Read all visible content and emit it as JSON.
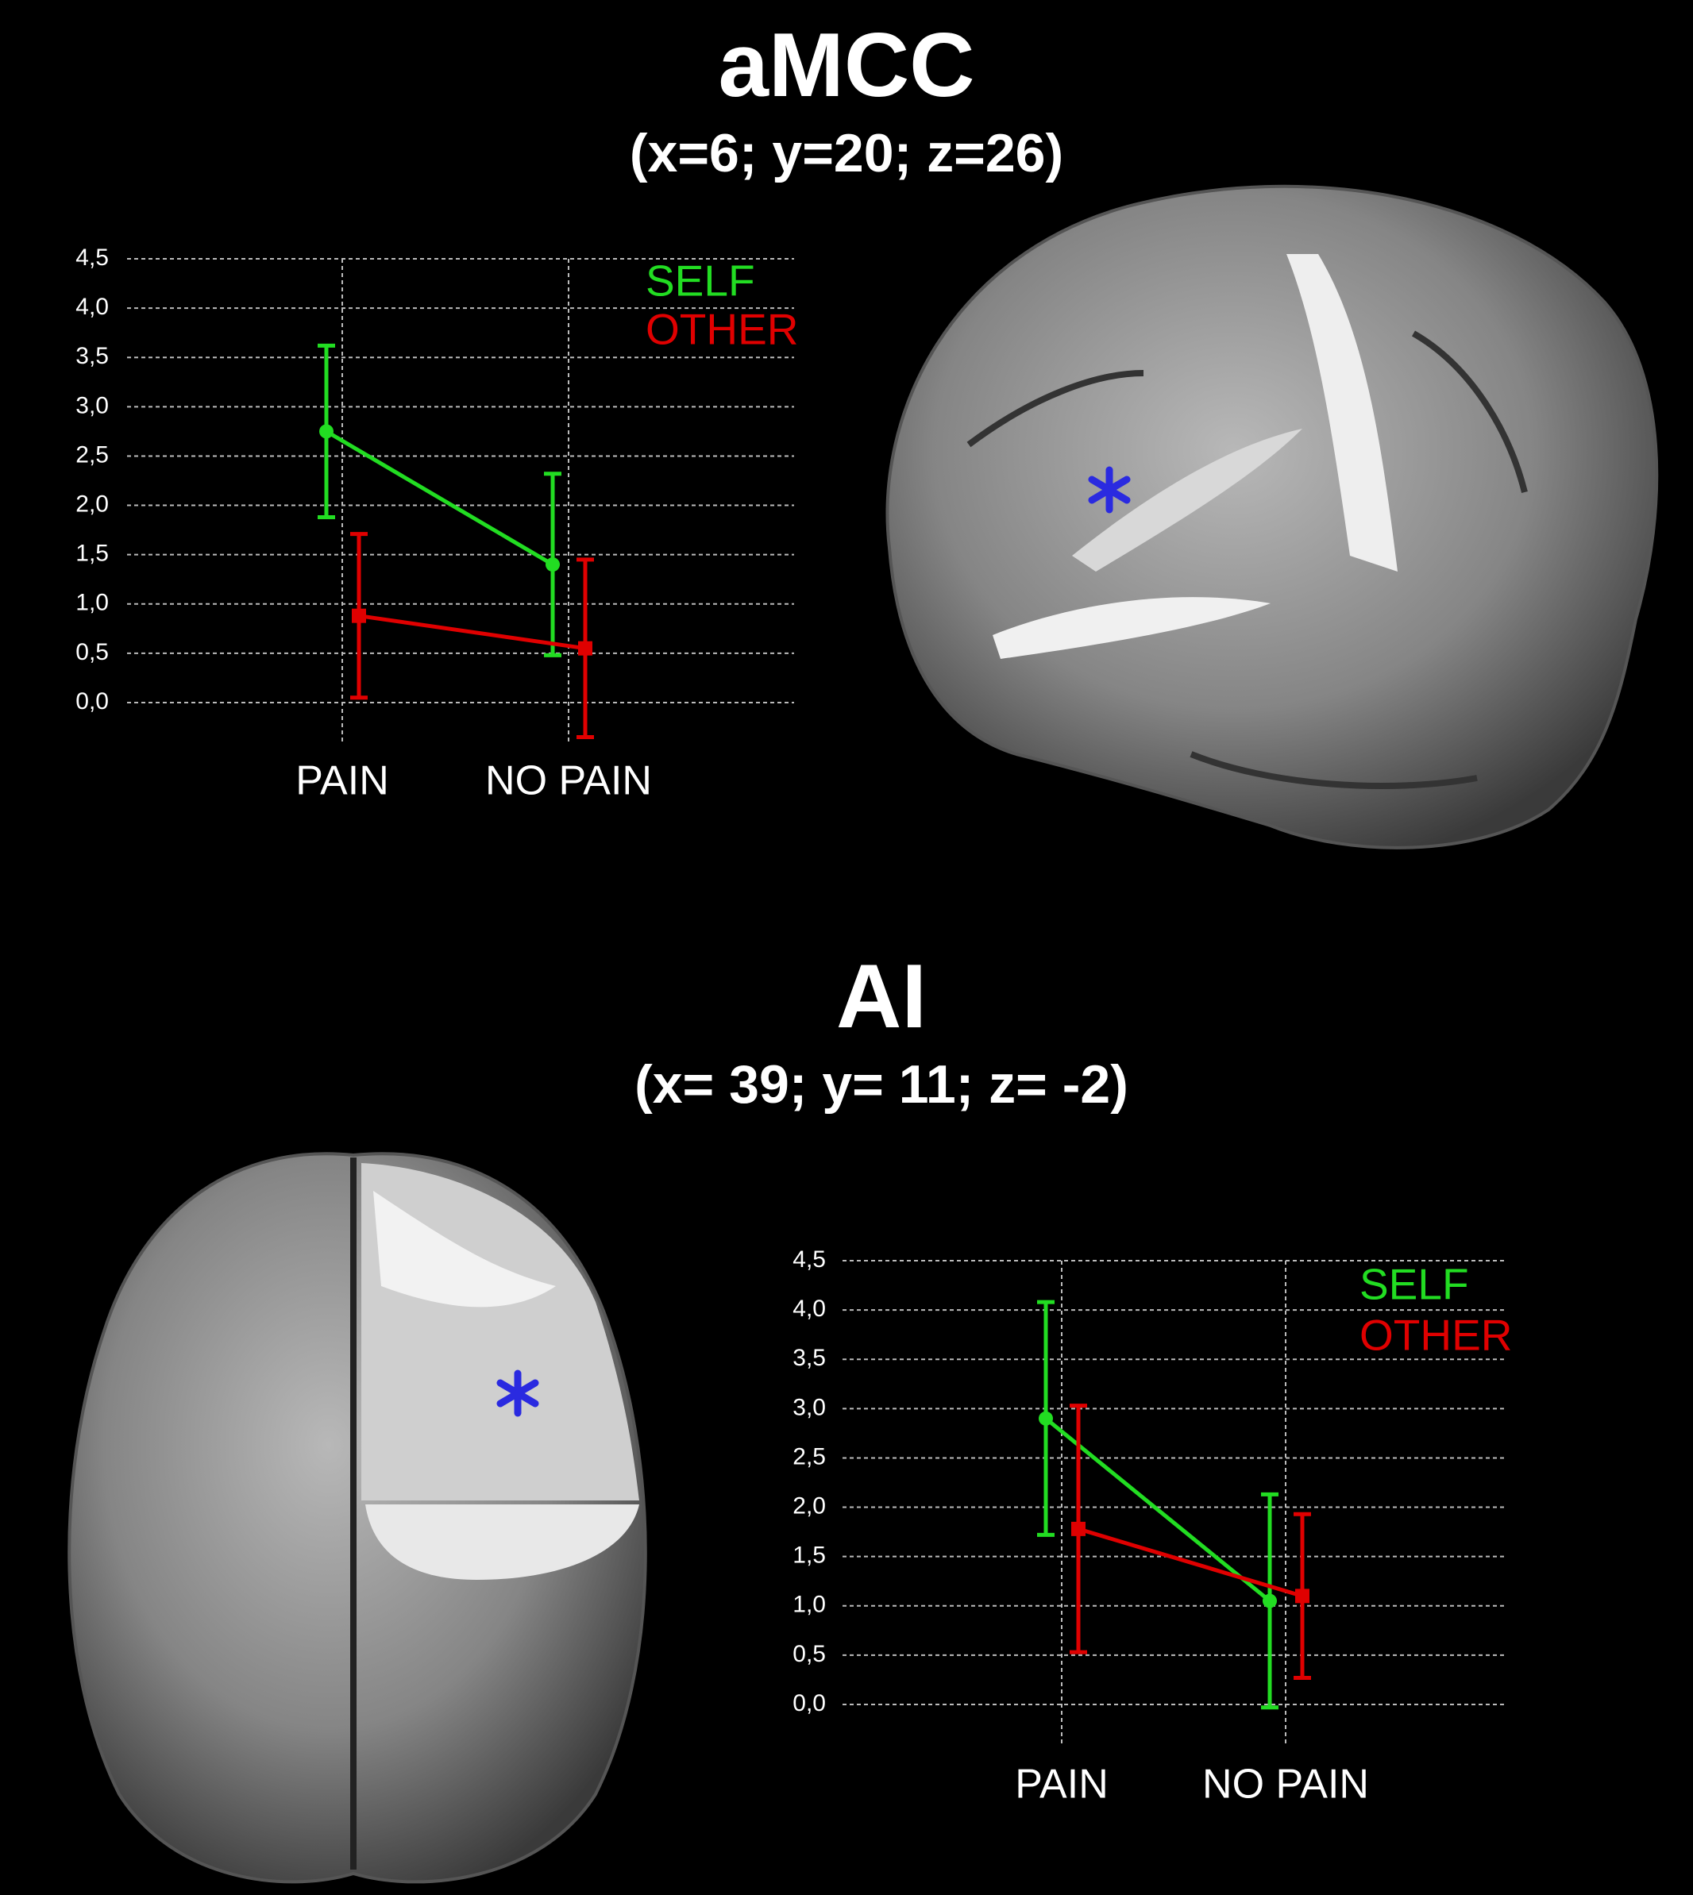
{
  "chart_data": [
    {
      "type": "line",
      "title": "aMCC",
      "subtitle": "(x=6; y=20; z=26)",
      "categories": [
        "PAIN",
        "NO PAIN"
      ],
      "series": [
        {
          "name": "SELF",
          "color": "#22dd22",
          "marker": "circle",
          "values": [
            2.75,
            1.4
          ],
          "errors": [
            0.87,
            0.92
          ]
        },
        {
          "name": "OTHER",
          "color": "#e00000",
          "marker": "square",
          "values": [
            0.88,
            0.55
          ],
          "errors": [
            0.83,
            0.9
          ]
        }
      ],
      "ylim": [
        -0.4,
        4.5
      ],
      "yticks": [
        {
          "value": 0,
          "label": "0,0"
        },
        {
          "value": 0.5,
          "label": "0,5"
        },
        {
          "value": 1,
          "label": "1,0"
        },
        {
          "value": 1.5,
          "label": "1,5"
        },
        {
          "value": 2,
          "label": "2,0"
        },
        {
          "value": 2.5,
          "label": "2,5"
        },
        {
          "value": 3,
          "label": "3,0"
        },
        {
          "value": 3.5,
          "label": "3,5"
        },
        {
          "value": 4,
          "label": "4,0"
        },
        {
          "value": 4.5,
          "label": "4,5"
        }
      ],
      "grid": true
    },
    {
      "type": "line",
      "title": "AI",
      "subtitle": "(x= 39; y= 11; z= -2)",
      "categories": [
        "PAIN",
        "NO PAIN"
      ],
      "series": [
        {
          "name": "SELF",
          "color": "#22dd22",
          "marker": "circle",
          "values": [
            2.9,
            1.05
          ],
          "errors": [
            1.18,
            1.08
          ]
        },
        {
          "name": "OTHER",
          "color": "#e00000",
          "marker": "square",
          "values": [
            1.78,
            1.1
          ],
          "errors": [
            1.25,
            0.83
          ]
        }
      ],
      "ylim": [
        -0.4,
        4.5
      ],
      "yticks": [
        {
          "value": 0,
          "label": "0,0"
        },
        {
          "value": 0.5,
          "label": "0,5"
        },
        {
          "value": 1,
          "label": "1,0"
        },
        {
          "value": 1.5,
          "label": "1,5"
        },
        {
          "value": 2,
          "label": "2,0"
        },
        {
          "value": 2.5,
          "label": "2,5"
        },
        {
          "value": 3,
          "label": "3,0"
        },
        {
          "value": 3.5,
          "label": "3,5"
        },
        {
          "value": 4,
          "label": "4,0"
        },
        {
          "value": 4.5,
          "label": "4,5"
        }
      ],
      "grid": true
    }
  ]
}
